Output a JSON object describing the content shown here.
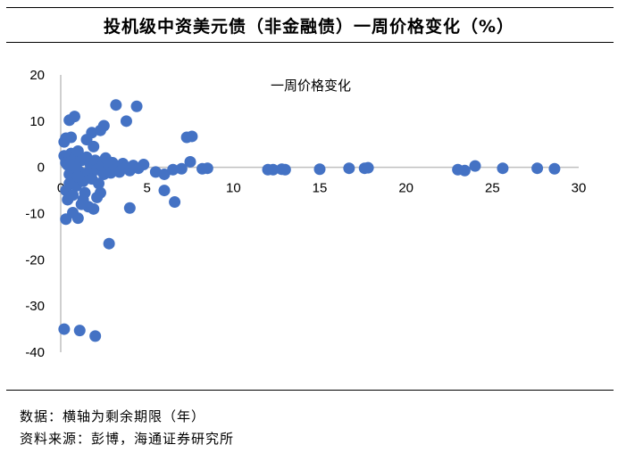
{
  "figure_title": "投机级中资美元债（非金融债）一周价格变化（%）",
  "notes": {
    "data_note": "数据：横轴为剩余期限（年）",
    "source": "资料来源：彭博，海通证券研究所"
  },
  "colors": {
    "point": "#4472C4",
    "axis": "#BFBFBF",
    "text": "#000000"
  },
  "chart_data": {
    "type": "scatter",
    "title": "一周价格变化",
    "xlabel": "",
    "ylabel": "",
    "xlim": [
      0,
      30
    ],
    "ylim": [
      -40,
      20
    ],
    "x_ticks": [
      0,
      5,
      10,
      15,
      20,
      25,
      30
    ],
    "y_ticks": [
      20,
      10,
      0,
      -10,
      -20,
      -30,
      -40
    ],
    "grid": false,
    "legend": "none",
    "series": [
      {
        "name": "一周价格变化",
        "points": [
          [
            0.2,
            5.5
          ],
          [
            0.3,
            6.3
          ],
          [
            0.5,
            10.2
          ],
          [
            0.8,
            11.0
          ],
          [
            0.6,
            6.5
          ],
          [
            0.3,
            -11.2
          ],
          [
            0.7,
            -9.8
          ],
          [
            1.0,
            -11.0
          ],
          [
            0.2,
            -35.0
          ],
          [
            1.1,
            -35.3
          ],
          [
            2.0,
            -36.5
          ],
          [
            0.2,
            2.5
          ],
          [
            0.3,
            1.0
          ],
          [
            0.4,
            0.5
          ],
          [
            0.5,
            -1.5
          ],
          [
            0.6,
            3.0
          ],
          [
            0.7,
            -2.5
          ],
          [
            0.8,
            2.0
          ],
          [
            0.9,
            -4.0
          ],
          [
            1.0,
            3.5
          ],
          [
            1.1,
            -1.0
          ],
          [
            1.2,
            1.5
          ],
          [
            1.3,
            -3.0
          ],
          [
            0.3,
            -5.0
          ],
          [
            0.4,
            -7.0
          ],
          [
            0.5,
            -3.5
          ],
          [
            0.6,
            1.2
          ],
          [
            0.7,
            -6.0
          ],
          [
            0.9,
            0.0
          ],
          [
            1.0,
            -2.0
          ],
          [
            1.2,
            -8.0
          ],
          [
            1.4,
            -5.5
          ],
          [
            1.5,
            2.2
          ],
          [
            1.6,
            -1.0
          ],
          [
            1.7,
            0.8
          ],
          [
            1.8,
            -2.5
          ],
          [
            1.9,
            4.5
          ],
          [
            2.0,
            1.5
          ],
          [
            2.1,
            -0.5
          ],
          [
            2.2,
            -3.5
          ],
          [
            2.3,
            -5.5
          ],
          [
            2.4,
            0.3
          ],
          [
            2.5,
            -1.5
          ],
          [
            2.6,
            2.0
          ],
          [
            2.7,
            -0.8
          ],
          [
            2.8,
            0.5
          ],
          [
            2.9,
            -1.2
          ],
          [
            3.0,
            1.0
          ],
          [
            3.2,
            -0.3
          ],
          [
            3.4,
            -1.0
          ],
          [
            3.6,
            0.8
          ],
          [
            3.8,
            0.0
          ],
          [
            4.0,
            -0.7
          ],
          [
            4.2,
            0.4
          ],
          [
            4.5,
            -0.2
          ],
          [
            4.8,
            0.6
          ],
          [
            1.5,
            6.0
          ],
          [
            1.8,
            7.5
          ],
          [
            2.3,
            8.0
          ],
          [
            2.5,
            9.0
          ],
          [
            3.2,
            13.5
          ],
          [
            3.8,
            10.0
          ],
          [
            4.4,
            13.2
          ],
          [
            1.3,
            -7.0
          ],
          [
            1.6,
            -8.5
          ],
          [
            1.9,
            -9.0
          ],
          [
            2.1,
            -6.5
          ],
          [
            4.0,
            -8.8
          ],
          [
            2.8,
            -16.5
          ],
          [
            5.5,
            -1.0
          ],
          [
            6.0,
            -1.5
          ],
          [
            6.5,
            -0.5
          ],
          [
            7.0,
            -0.3
          ],
          [
            7.3,
            6.5
          ],
          [
            7.6,
            6.7
          ],
          [
            7.5,
            1.2
          ],
          [
            6.0,
            -5.0
          ],
          [
            6.6,
            -7.5
          ],
          [
            8.2,
            -0.3
          ],
          [
            8.5,
            -0.2
          ],
          [
            12.0,
            -0.5
          ],
          [
            12.3,
            -0.5
          ],
          [
            12.8,
            -0.4
          ],
          [
            13.0,
            -0.5
          ],
          [
            15.0,
            -0.4
          ],
          [
            16.7,
            -0.2
          ],
          [
            17.6,
            -0.2
          ],
          [
            17.8,
            -0.1
          ],
          [
            23.0,
            -0.5
          ],
          [
            23.4,
            -0.7
          ],
          [
            24.0,
            0.3
          ],
          [
            25.6,
            -0.2
          ],
          [
            27.6,
            -0.2
          ],
          [
            28.6,
            -0.3
          ]
        ]
      }
    ]
  }
}
